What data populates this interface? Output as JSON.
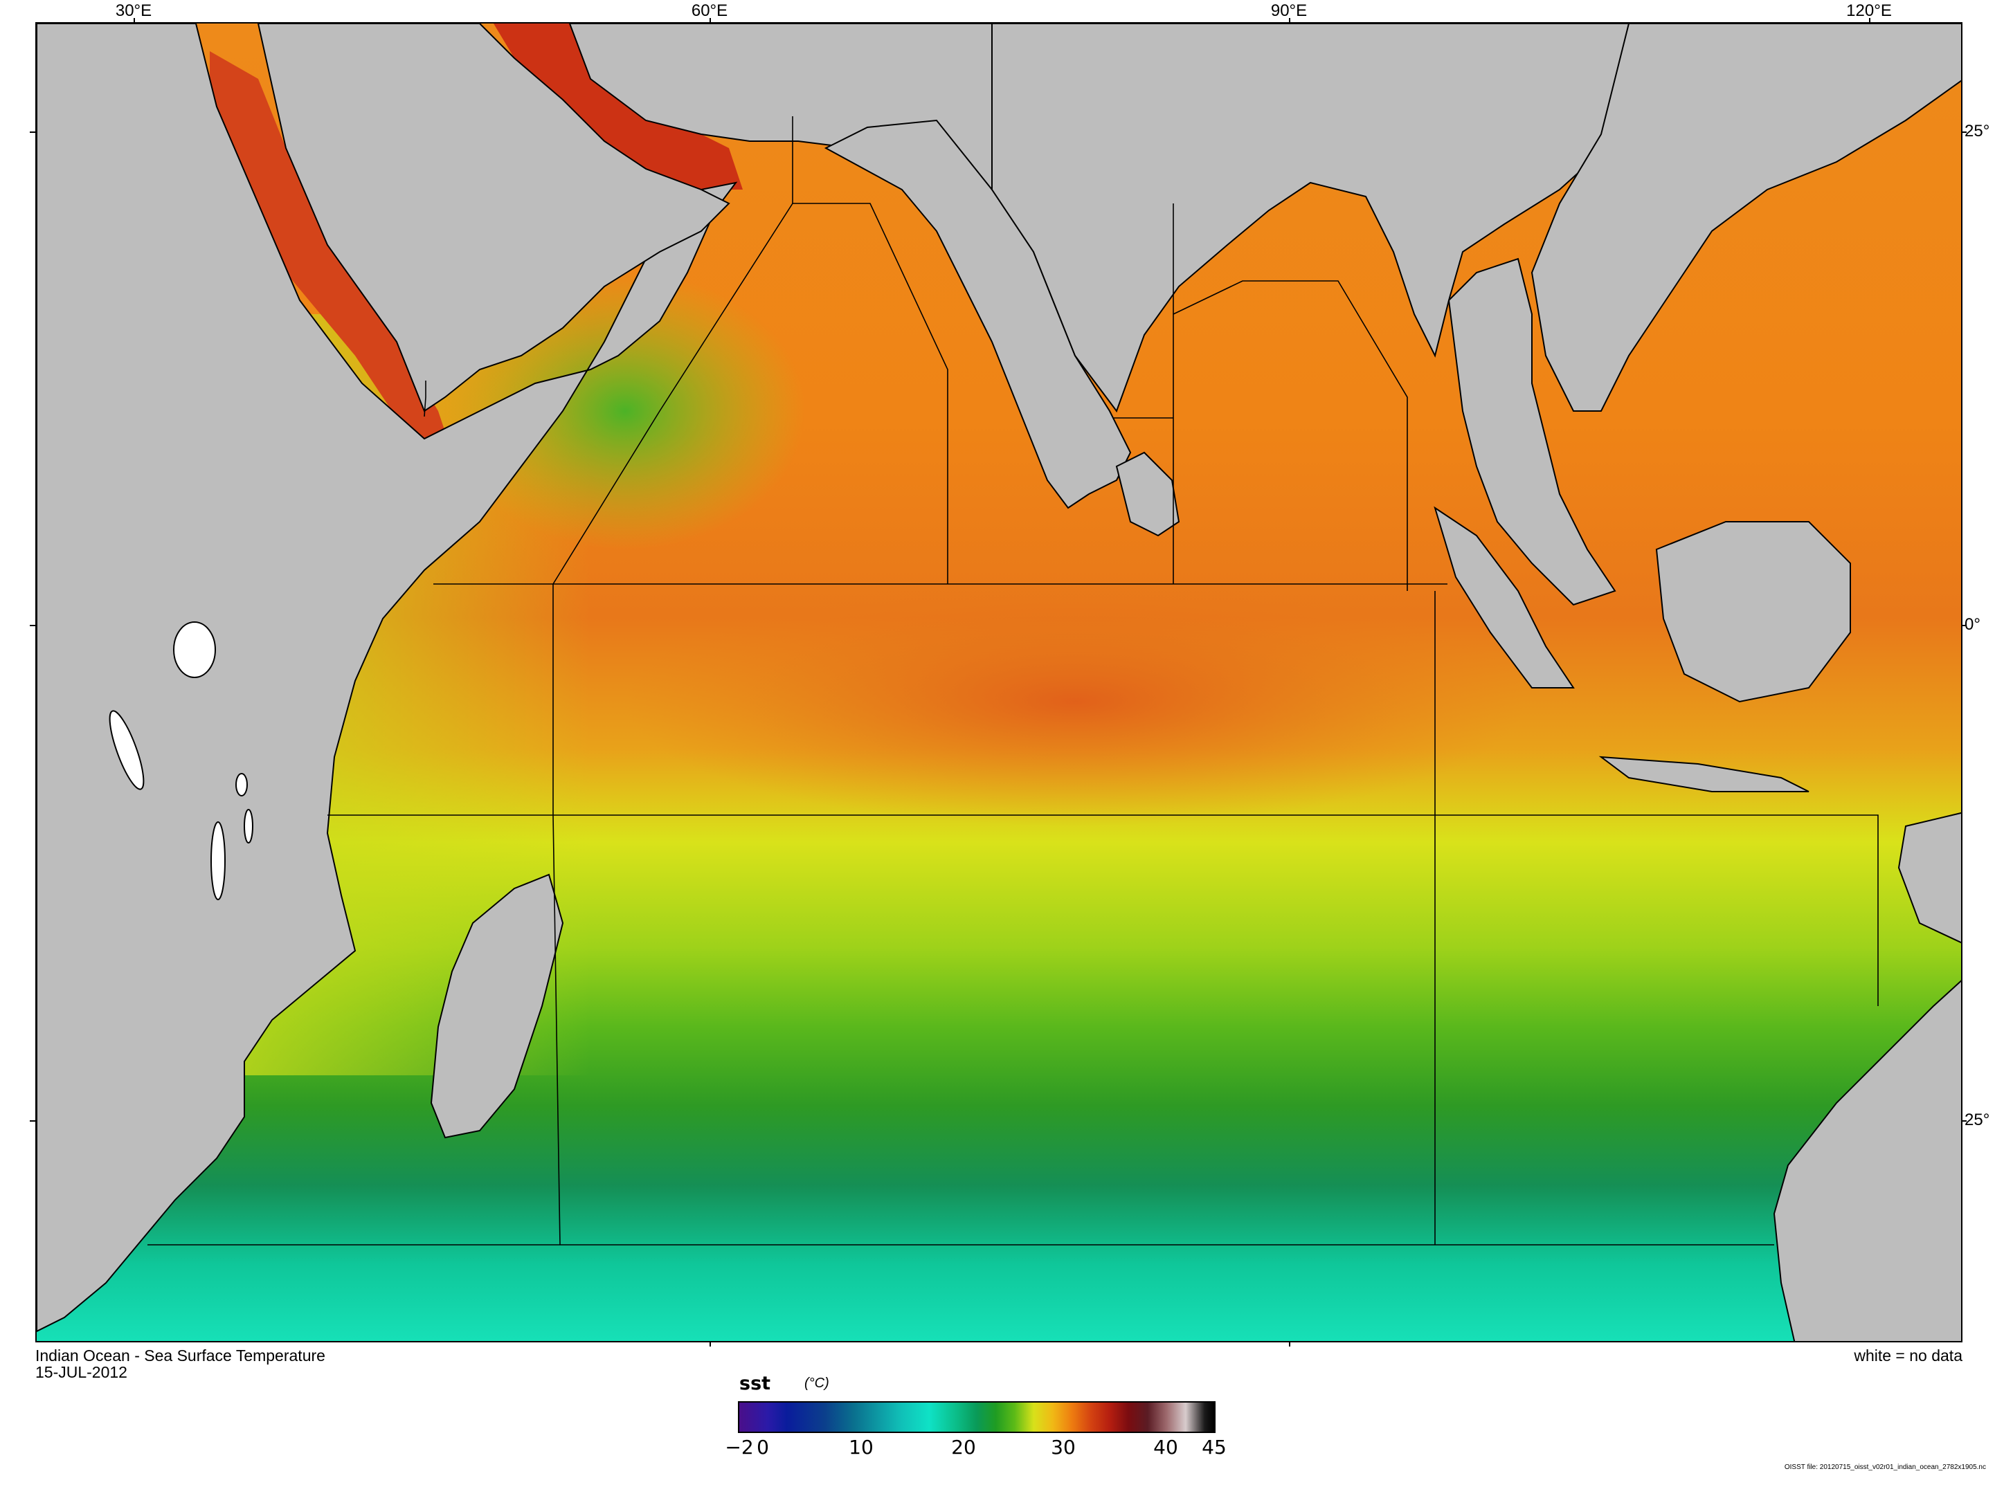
{
  "map": {
    "lon_labels": [
      "30°E",
      "60°E",
      "90°E",
      "120°E"
    ],
    "lat_labels": [
      "25°",
      "0°",
      "25°"
    ],
    "colors": {
      "land": "#bdbdbd",
      "no_data": "#ffffff",
      "coastline": "#000000"
    }
  },
  "caption": {
    "title": "Indian Ocean - Sea Surface Temperature",
    "date": "15-JUL-2012",
    "no_data_note": "white = no data"
  },
  "colorbar": {
    "variable": "sst",
    "unit": "(°C)",
    "ticks": [
      "−2",
      "0",
      "10",
      "20",
      "30",
      "40",
      "45"
    ],
    "range": [
      -2,
      45
    ]
  },
  "footer": {
    "file_note": "OISST file: 20120715_oisst_v02r01_indian_ocean_2782x1905.nc"
  }
}
